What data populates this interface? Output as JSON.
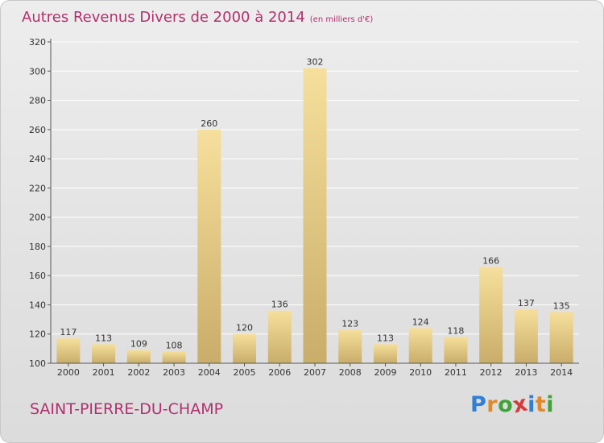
{
  "header": {
    "title": "Autres Revenus Divers de 2000 à 2014",
    "subtitle": "(en milliers d'€)"
  },
  "footer": {
    "commune": "SAINT-PIERRE-DU-CHAMP",
    "brand_letters": [
      {
        "ch": "P",
        "color": "#2f7fd6"
      },
      {
        "ch": "r",
        "color": "#e0892a"
      },
      {
        "ch": "o",
        "color": "#3fa33a"
      },
      {
        "ch": "x",
        "color": "#d63a3a"
      },
      {
        "ch": "i",
        "color": "#2f7fd6"
      },
      {
        "ch": "t",
        "color": "#e0892a"
      },
      {
        "ch": "i",
        "color": "#3fa33a"
      }
    ]
  },
  "colors": {
    "bar_top": "#f6df9c",
    "bar_bottom": "#c9ad6a",
    "title": "#b0306e",
    "grid": "#ffffff",
    "axis": "#555555"
  },
  "chart_data": {
    "type": "bar",
    "title": "Autres Revenus Divers de 2000 à 2014",
    "subtitle": "(en milliers d'€)",
    "categories": [
      "2000",
      "2001",
      "2002",
      "2003",
      "2004",
      "2005",
      "2006",
      "2007",
      "2008",
      "2009",
      "2010",
      "2011",
      "2012",
      "2013",
      "2014"
    ],
    "values": [
      117,
      113,
      109,
      108,
      260,
      120,
      136,
      302,
      123,
      113,
      124,
      118,
      166,
      137,
      135
    ],
    "ylim": [
      100,
      320
    ],
    "yticks": [
      100,
      120,
      140,
      160,
      180,
      200,
      220,
      240,
      260,
      280,
      300,
      320
    ],
    "grid": true,
    "data_labels": true
  }
}
